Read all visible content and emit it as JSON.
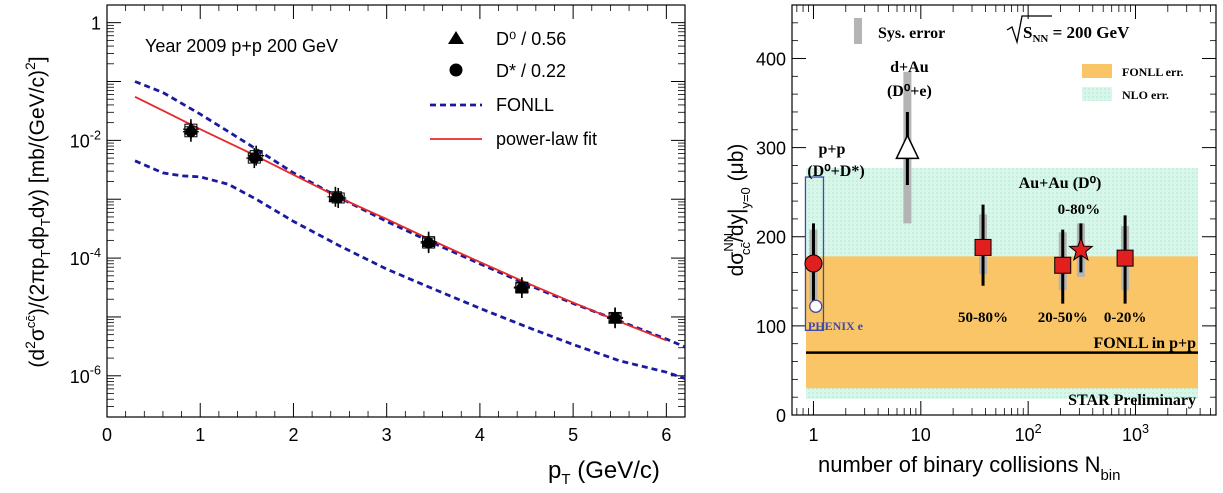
{
  "colors": {
    "fonll": "#1a1aa0",
    "fit": "#e8282a",
    "fonll_band": "#f9c567",
    "nlo_band": "#d9f6ea",
    "nlo_dot": "#a6e6cd",
    "syserr": "#b4b4b4",
    "red_marker": "#e0201e",
    "phenix": "#404aa8",
    "black": "#000000"
  },
  "chart_data": [
    {
      "type": "scatter",
      "xlabel_main": "p",
      "xlabel_sub": "T",
      "xlabel_rest": " (GeV/c)",
      "ylabel": "(d²σᶜᶜ̄)/(2πp_T dp_T dy) [mb/(GeV/c)²]",
      "xlim": [
        0,
        6.2
      ],
      "ylim_log10": [
        -6.7,
        0.3
      ],
      "yscale": "log",
      "x_ticks": [
        "0",
        "1",
        "2",
        "3",
        "4",
        "5",
        "6"
      ],
      "y_ticks": [
        {
          "base": "1",
          "exp": ""
        },
        {
          "base": "10",
          "exp": "-2"
        },
        {
          "base": "10",
          "exp": "-4"
        },
        {
          "base": "10",
          "exp": "-6"
        }
      ],
      "annotation": "Year 2009 p+p 200 GeV",
      "legend_position": "top-right",
      "legend": [
        {
          "label": "D⁰ / 0.56",
          "marker": "triangle"
        },
        {
          "label": "D* / 0.22",
          "marker": "circle"
        },
        {
          "label": "FONLL",
          "marker": "dashed-line"
        },
        {
          "label": "power-law fit",
          "marker": "solid-line"
        }
      ],
      "series": [
        {
          "name": "D⁰ / 0.56",
          "marker": "triangle",
          "x": [
            0.9,
            1.6,
            2.45,
            3.45,
            4.45,
            5.45
          ],
          "y": [
            0.0155,
            0.0055,
            0.0011,
            0.00019,
            3.2e-05,
            9.5e-06
          ]
        },
        {
          "name": "D* / 0.22",
          "marker": "circle",
          "x": [
            0.9,
            1.58,
            2.48,
            3.45,
            4.45,
            5.45
          ],
          "y": [
            0.014,
            0.005,
            0.00105,
            0.00018,
            3.1e-05,
            9.8e-06
          ]
        },
        {
          "name": "FONLL upper",
          "style": "dashed",
          "x": [
            0.3,
            0.6,
            1.0,
            1.5,
            2.0,
            2.5,
            3.0,
            3.5,
            4.0,
            4.5,
            5.0,
            5.5,
            6.0,
            6.2
          ],
          "y": [
            0.1,
            0.065,
            0.028,
            0.009,
            0.0028,
            0.00105,
            0.00042,
            0.00018,
            8e-05,
            3.6e-05,
            1.7e-05,
            8.5e-06,
            4.2e-06,
            3.1e-06
          ]
        },
        {
          "name": "FONLL lower",
          "style": "dashed",
          "x": [
            0.3,
            0.6,
            0.8,
            1.0,
            1.3,
            1.6,
            2.0,
            2.5,
            3.0,
            3.5,
            4.0,
            4.5,
            5.0,
            5.5,
            6.0,
            6.2
          ],
          "y": [
            0.0045,
            0.0028,
            0.0025,
            0.0024,
            0.0018,
            0.001,
            0.00042,
            0.00016,
            6.5e-05,
            3e-05,
            1.4e-05,
            6.8e-06,
            3.4e-06,
            1.8e-06,
            1.15e-06,
            9e-07
          ]
        },
        {
          "name": "power-law fit",
          "style": "solid",
          "x": [
            0.3,
            0.6,
            1.0,
            1.5,
            2.0,
            2.5,
            3.0,
            3.5,
            4.0,
            4.5,
            5.0,
            5.5,
            6.0
          ],
          "y": [
            0.055,
            0.032,
            0.0155,
            0.0065,
            0.0026,
            0.00105,
            0.00046,
            0.000195,
            8.55e-05,
            3.8e-05,
            1.75e-05,
            8.3e-06,
            4e-06
          ]
        }
      ]
    },
    {
      "type": "scatter",
      "xlabel": "number of binary collisions N",
      "xlabel_sub": "bin",
      "ylabel": "dσ_cc̄^NN/dy|_y=0 (μb)",
      "xscale": "log",
      "xlim_log10": [
        -0.2,
        3.75
      ],
      "ylim": [
        0,
        460
      ],
      "x_ticks": [
        {
          "base": "1",
          "exp": ""
        },
        {
          "base": "10",
          "exp": ""
        },
        {
          "base": "10",
          "exp": "2"
        },
        {
          "base": "10",
          "exp": "3"
        }
      ],
      "y_ticks": [
        "0",
        "100",
        "200",
        "300",
        "400"
      ],
      "bands": [
        {
          "name": "FONLL err.",
          "y": [
            30,
            178
          ]
        },
        {
          "name": "NLO err.",
          "y": [
            18,
            277
          ]
        }
      ],
      "fonll_line": {
        "label": "FONLL in p+p",
        "y": 70
      },
      "legend_position": "top-right",
      "legend": [
        "Sys. error",
        "FONLL err.",
        "NLO err."
      ],
      "energy_label": {
        "prefix": "S",
        "sub": "NN",
        "suffix": " = 200 GeV"
      },
      "points": [
        {
          "label": "p+p (D⁰+D*)",
          "label_line1": "p+p",
          "label_line2": "(D⁰+D*)",
          "marker": "red-circle",
          "x": 1.0,
          "y": 170,
          "stat": [
            128,
            215
          ],
          "sys": [
            128,
            208
          ]
        },
        {
          "label": "d+Au (D⁰+e)",
          "label_line1": "d+Au",
          "label_line2": "(D⁰+e)",
          "marker": "open-triangle",
          "x": 7.5,
          "y": 298,
          "stat": [
            258,
            340
          ],
          "sys": [
            215,
            385
          ]
        },
        {
          "label": "50-80%",
          "marker": "red-square",
          "x": 38,
          "y": 188,
          "stat": [
            145,
            236
          ],
          "sys": [
            158,
            225
          ]
        },
        {
          "label": "20-50%",
          "marker": "red-square",
          "x": 210,
          "y": 168,
          "stat": [
            125,
            208
          ],
          "sys": [
            140,
            205
          ]
        },
        {
          "label": "0-80%",
          "marker": "red-star",
          "x": 310,
          "y": 185,
          "stat": [
            160,
            215
          ],
          "sys": [
            155,
            215
          ]
        },
        {
          "label": "0-20%",
          "marker": "red-square",
          "x": 800,
          "y": 176,
          "stat": [
            125,
            224
          ],
          "sys": [
            140,
            212
          ]
        }
      ],
      "phenix": {
        "label": "PHENIX e",
        "x": 1.05,
        "y": 122,
        "box": [
          95,
          267
        ]
      },
      "labels": {
        "syserr": "Sys. error",
        "fonll_err": "FONLL err.",
        "nlo_err": "NLO err.",
        "auau": "Au+Au (D⁰)",
        "auau_0_80": "0-80%",
        "star_prelim": "STAR Preliminary"
      }
    }
  ]
}
